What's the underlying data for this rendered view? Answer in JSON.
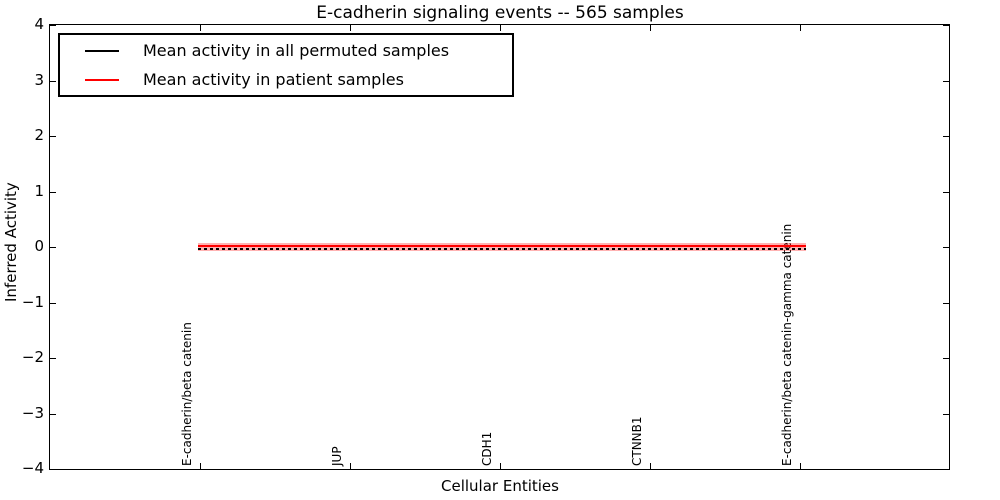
{
  "chart_data": {
    "type": "line",
    "title": "E-cadherin signaling events -- 565 samples",
    "xlabel": "Cellular Entities",
    "ylabel": "Inferred Activity",
    "ylim": [
      -4,
      4
    ],
    "yticks": [
      4,
      3,
      2,
      1,
      0,
      -1,
      -2,
      -3,
      -4
    ],
    "ytick_labels": [
      "4",
      "3",
      "2",
      "1",
      "0",
      "−1",
      "−2",
      "−3",
      "−4"
    ],
    "categories": [
      "E-cadherin/beta catenin",
      "JUP",
      "CDH1",
      "CTNNB1",
      "E-cadherin/beta catenin-gamma catenin"
    ],
    "series": [
      {
        "name": "Mean activity in all permuted samples",
        "color": "#000000",
        "line_style": "dotted",
        "values": [
          -0.02,
          -0.02,
          -0.02,
          -0.02,
          -0.02
        ]
      },
      {
        "name": "Mean activity in patient samples",
        "color": "#ff0000",
        "line_style": "solid",
        "values": [
          0.03,
          0.03,
          0.03,
          0.03,
          0.03
        ]
      }
    ],
    "band": {
      "attached_to": "Mean activity in patient samples",
      "upper": 0.08,
      "lower": -0.06,
      "color": "#ff0000",
      "opacity": 0.3
    },
    "legend_position": "upper left",
    "grid": false,
    "tick_direction": "in"
  },
  "legend": {
    "items": [
      {
        "label": "Mean activity in all permuted samples",
        "color": "#000000"
      },
      {
        "label": "Mean activity in patient samples",
        "color": "#ff0000"
      }
    ]
  },
  "colors": {
    "patient_line": "#ff0000",
    "permuted_line": "#000000",
    "band_fill": "#ff0000",
    "axes": "#000000",
    "background": "#ffffff"
  }
}
